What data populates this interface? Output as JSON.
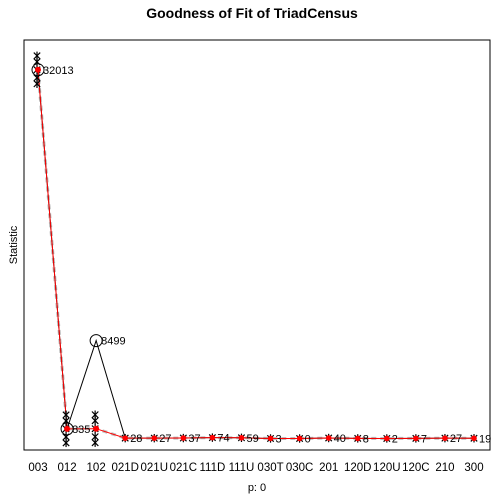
{
  "chart_data": {
    "type": "line",
    "title": "Goodness of Fit of TriadCensus",
    "xlabel": "p: 0",
    "ylabel": "Statistic",
    "categories": [
      "003",
      "012",
      "102",
      "021D",
      "021U",
      "021C",
      "111D",
      "111U",
      "030T",
      "030C",
      "201",
      "120D",
      "120U",
      "120C",
      "210",
      "300"
    ],
    "observed_labels": [
      "32013",
      "835",
      "8499",
      "28",
      "27",
      "37",
      "74",
      "59",
      "3",
      "0",
      "40",
      "8",
      "2",
      "7",
      "27",
      "19"
    ],
    "observed": [
      32013,
      835,
      8499,
      28,
      27,
      37,
      74,
      59,
      3,
      0,
      40,
      8,
      2,
      7,
      27,
      19
    ],
    "simulated_mean": [
      32013,
      835,
      850,
      28,
      27,
      37,
      74,
      59,
      3,
      0,
      40,
      8,
      2,
      7,
      27,
      19
    ],
    "ylim": [
      -1000,
      34600
    ],
    "colors": {
      "observed_line": "#000000",
      "simulated_line": "#ff0000",
      "simulated_points": "#ff0000",
      "envelope": "#bebebe",
      "markers": "#000000"
    }
  }
}
